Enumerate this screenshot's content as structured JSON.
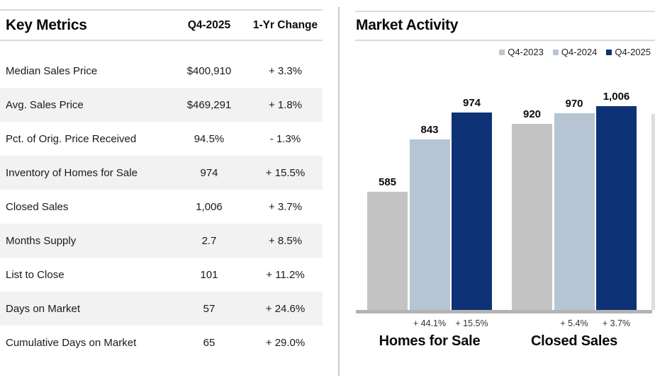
{
  "left_panel": {
    "title": "Key Metrics",
    "columns": [
      "Q4-2025",
      "1-Yr Change"
    ],
    "rows": [
      {
        "metric": "Median Sales Price",
        "value": "$400,910",
        "change": "+ 3.3%"
      },
      {
        "metric": "Avg. Sales Price",
        "value": "$469,291",
        "change": "+ 1.8%"
      },
      {
        "metric": "Pct. of Orig. Price Received",
        "value": "94.5%",
        "change": "- 1.3%"
      },
      {
        "metric": "Inventory of Homes for Sale",
        "value": "974",
        "change": "+ 15.5%"
      },
      {
        "metric": "Closed Sales",
        "value": "1,006",
        "change": "+ 3.7%"
      },
      {
        "metric": "Months Supply",
        "value": "2.7",
        "change": "+ 8.5%"
      },
      {
        "metric": "List to Close",
        "value": "101",
        "change": "+ 11.2%"
      },
      {
        "metric": "Days on Market",
        "value": "57",
        "change": "+ 24.6%"
      },
      {
        "metric": "Cumulative Days on Market",
        "value": "65",
        "change": "+ 29.0%"
      }
    ]
  },
  "right_panel": {
    "title": "Market Activity"
  },
  "chart_data": {
    "type": "bar",
    "title": "Market Activity",
    "categories": [
      "Homes for Sale",
      "Closed Sales"
    ],
    "series": [
      {
        "name": "Q4-2023",
        "color": "#c3c3c3",
        "values": [
          585,
          920
        ],
        "labels": [
          "585",
          "920"
        ],
        "changes": [
          "",
          ""
        ]
      },
      {
        "name": "Q4-2024",
        "color": "#b6c4d4",
        "values": [
          843,
          970
        ],
        "labels": [
          "843",
          "970"
        ],
        "changes": [
          "+ 44.1%",
          "+ 5.4%"
        ]
      },
      {
        "name": "Q4-2025",
        "color": "#0e3276",
        "values": [
          974,
          1006
        ],
        "labels": [
          "974",
          "1,006"
        ],
        "changes": [
          "+ 15.5%",
          "+ 3.7%"
        ]
      }
    ],
    "ylim": [
      0,
      1050
    ],
    "grid": false,
    "legend_position": "top-right",
    "axis_color": "#b3b3b3"
  },
  "colors": {
    "row_shade": "#f2f2f2",
    "rule": "#dadada",
    "divider": "#c9c9c9",
    "text": "#1a1a1a"
  }
}
